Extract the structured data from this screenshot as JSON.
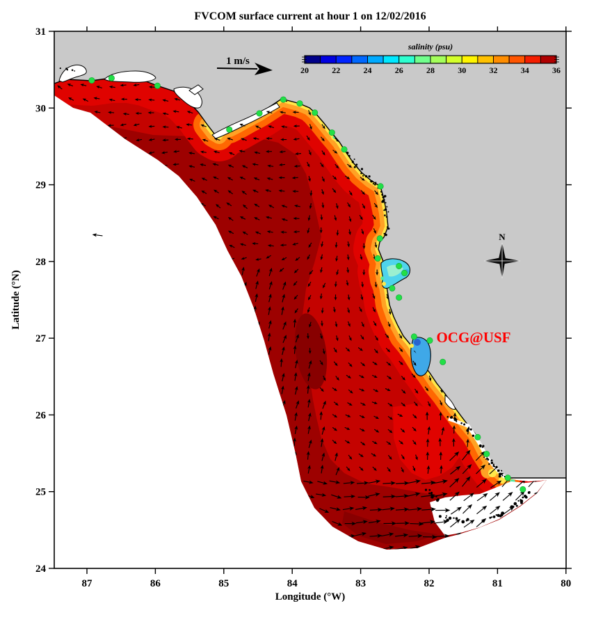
{
  "figure": {
    "title": "FVCOM surface current at hour 1 on 12/02/2016"
  },
  "axes": {
    "x_label": "Longitude (°W)",
    "y_label": "Latitude (°N)",
    "x_ticks": [
      "87",
      "86",
      "85",
      "84",
      "83",
      "82",
      "81",
      "80"
    ],
    "y_ticks": [
      "31",
      "30",
      "29",
      "28",
      "27",
      "26",
      "25",
      "24"
    ],
    "x_range_deg_w": [
      87.5,
      80
    ],
    "y_range_deg_n": [
      24,
      31
    ]
  },
  "colorbar": {
    "title": "salinity (psu)",
    "tick_labels": [
      "20",
      "22",
      "24",
      "26",
      "28",
      "30",
      "32",
      "34",
      "36"
    ],
    "range_psu": [
      20,
      36
    ],
    "segment_colors": [
      "#000089",
      "#0000E1",
      "#0023FF",
      "#0068FF",
      "#00AAFF",
      "#00E8FF",
      "#2EFFD0",
      "#71FF8D",
      "#A4FF5B",
      "#D4FF2B",
      "#FFF500",
      "#FFC100",
      "#FF8D00",
      "#FF5500",
      "#F41E00",
      "#AF0000"
    ]
  },
  "annotations": {
    "scale_arrow_label": "1 m/s",
    "watermark": "OCG@USF",
    "compass_label": "N"
  },
  "colors": {
    "background": "#FFFFFF",
    "land": "#C9C9C9",
    "coastline": "#000000",
    "vector": "#000000",
    "station_dot": "#22DF47",
    "station_dot_edge": "#0FA32F",
    "watermark_red": "#FF0000",
    "shelf_mid_red": "#C40300",
    "shelf_dark_red": "#9D0100",
    "shelf_deep_red": "#880000",
    "shelf_bright_red": "#E00300",
    "fringe_orange": "#FF6702",
    "fringe_light_orange": "#FFA225",
    "fringe_yellow": "#FFE84A",
    "bay_cyan": "#4FD4EC",
    "bay_teal": "#9BEFD0",
    "bay_blue": "#3FA8E8",
    "bay_deep_blue": "#2864D0",
    "spot_green": "#52E8A0"
  },
  "chart_data": {
    "type": "heatmap",
    "title": "FVCOM surface current at hour 1 on 12/02/2016",
    "field": "sea surface salinity",
    "units": "psu",
    "colorbar_title": "salinity (psu)",
    "color_scale_ticks": [
      20,
      22,
      24,
      26,
      28,
      30,
      32,
      34,
      36
    ],
    "vector_overlay": {
      "quantity": "surface current",
      "scale_label": "1 m/s"
    },
    "x": {
      "label": "Longitude (°W)",
      "ticks": [
        87,
        86,
        85,
        84,
        83,
        82,
        81,
        80
      ],
      "range": [
        87.5,
        80
      ]
    },
    "y": {
      "label": "Latitude (°N)",
      "ticks": [
        24,
        25,
        26,
        27,
        28,
        29,
        30,
        31
      ],
      "range": [
        24,
        31
      ]
    },
    "legend_position": "top",
    "grid": false,
    "stations_lon_lat": [
      [
        86.93,
        30.36
      ],
      [
        86.64,
        30.39
      ],
      [
        85.97,
        30.29
      ],
      [
        84.92,
        29.72
      ],
      [
        84.48,
        29.93
      ],
      [
        84.13,
        30.11
      ],
      [
        83.89,
        30.06
      ],
      [
        83.67,
        29.94
      ],
      [
        83.42,
        29.68
      ],
      [
        83.24,
        29.46
      ],
      [
        82.71,
        28.98
      ],
      [
        82.72,
        28.3
      ],
      [
        82.75,
        28.04
      ],
      [
        82.44,
        27.94
      ],
      [
        82.36,
        27.85
      ],
      [
        82.54,
        27.65
      ],
      [
        82.44,
        27.53
      ],
      [
        82.22,
        27.02
      ],
      [
        81.99,
        26.97
      ],
      [
        81.8,
        26.69
      ],
      [
        81.29,
        25.71
      ],
      [
        81.16,
        25.49
      ],
      [
        80.85,
        25.18
      ],
      [
        80.63,
        25.03
      ]
    ]
  }
}
